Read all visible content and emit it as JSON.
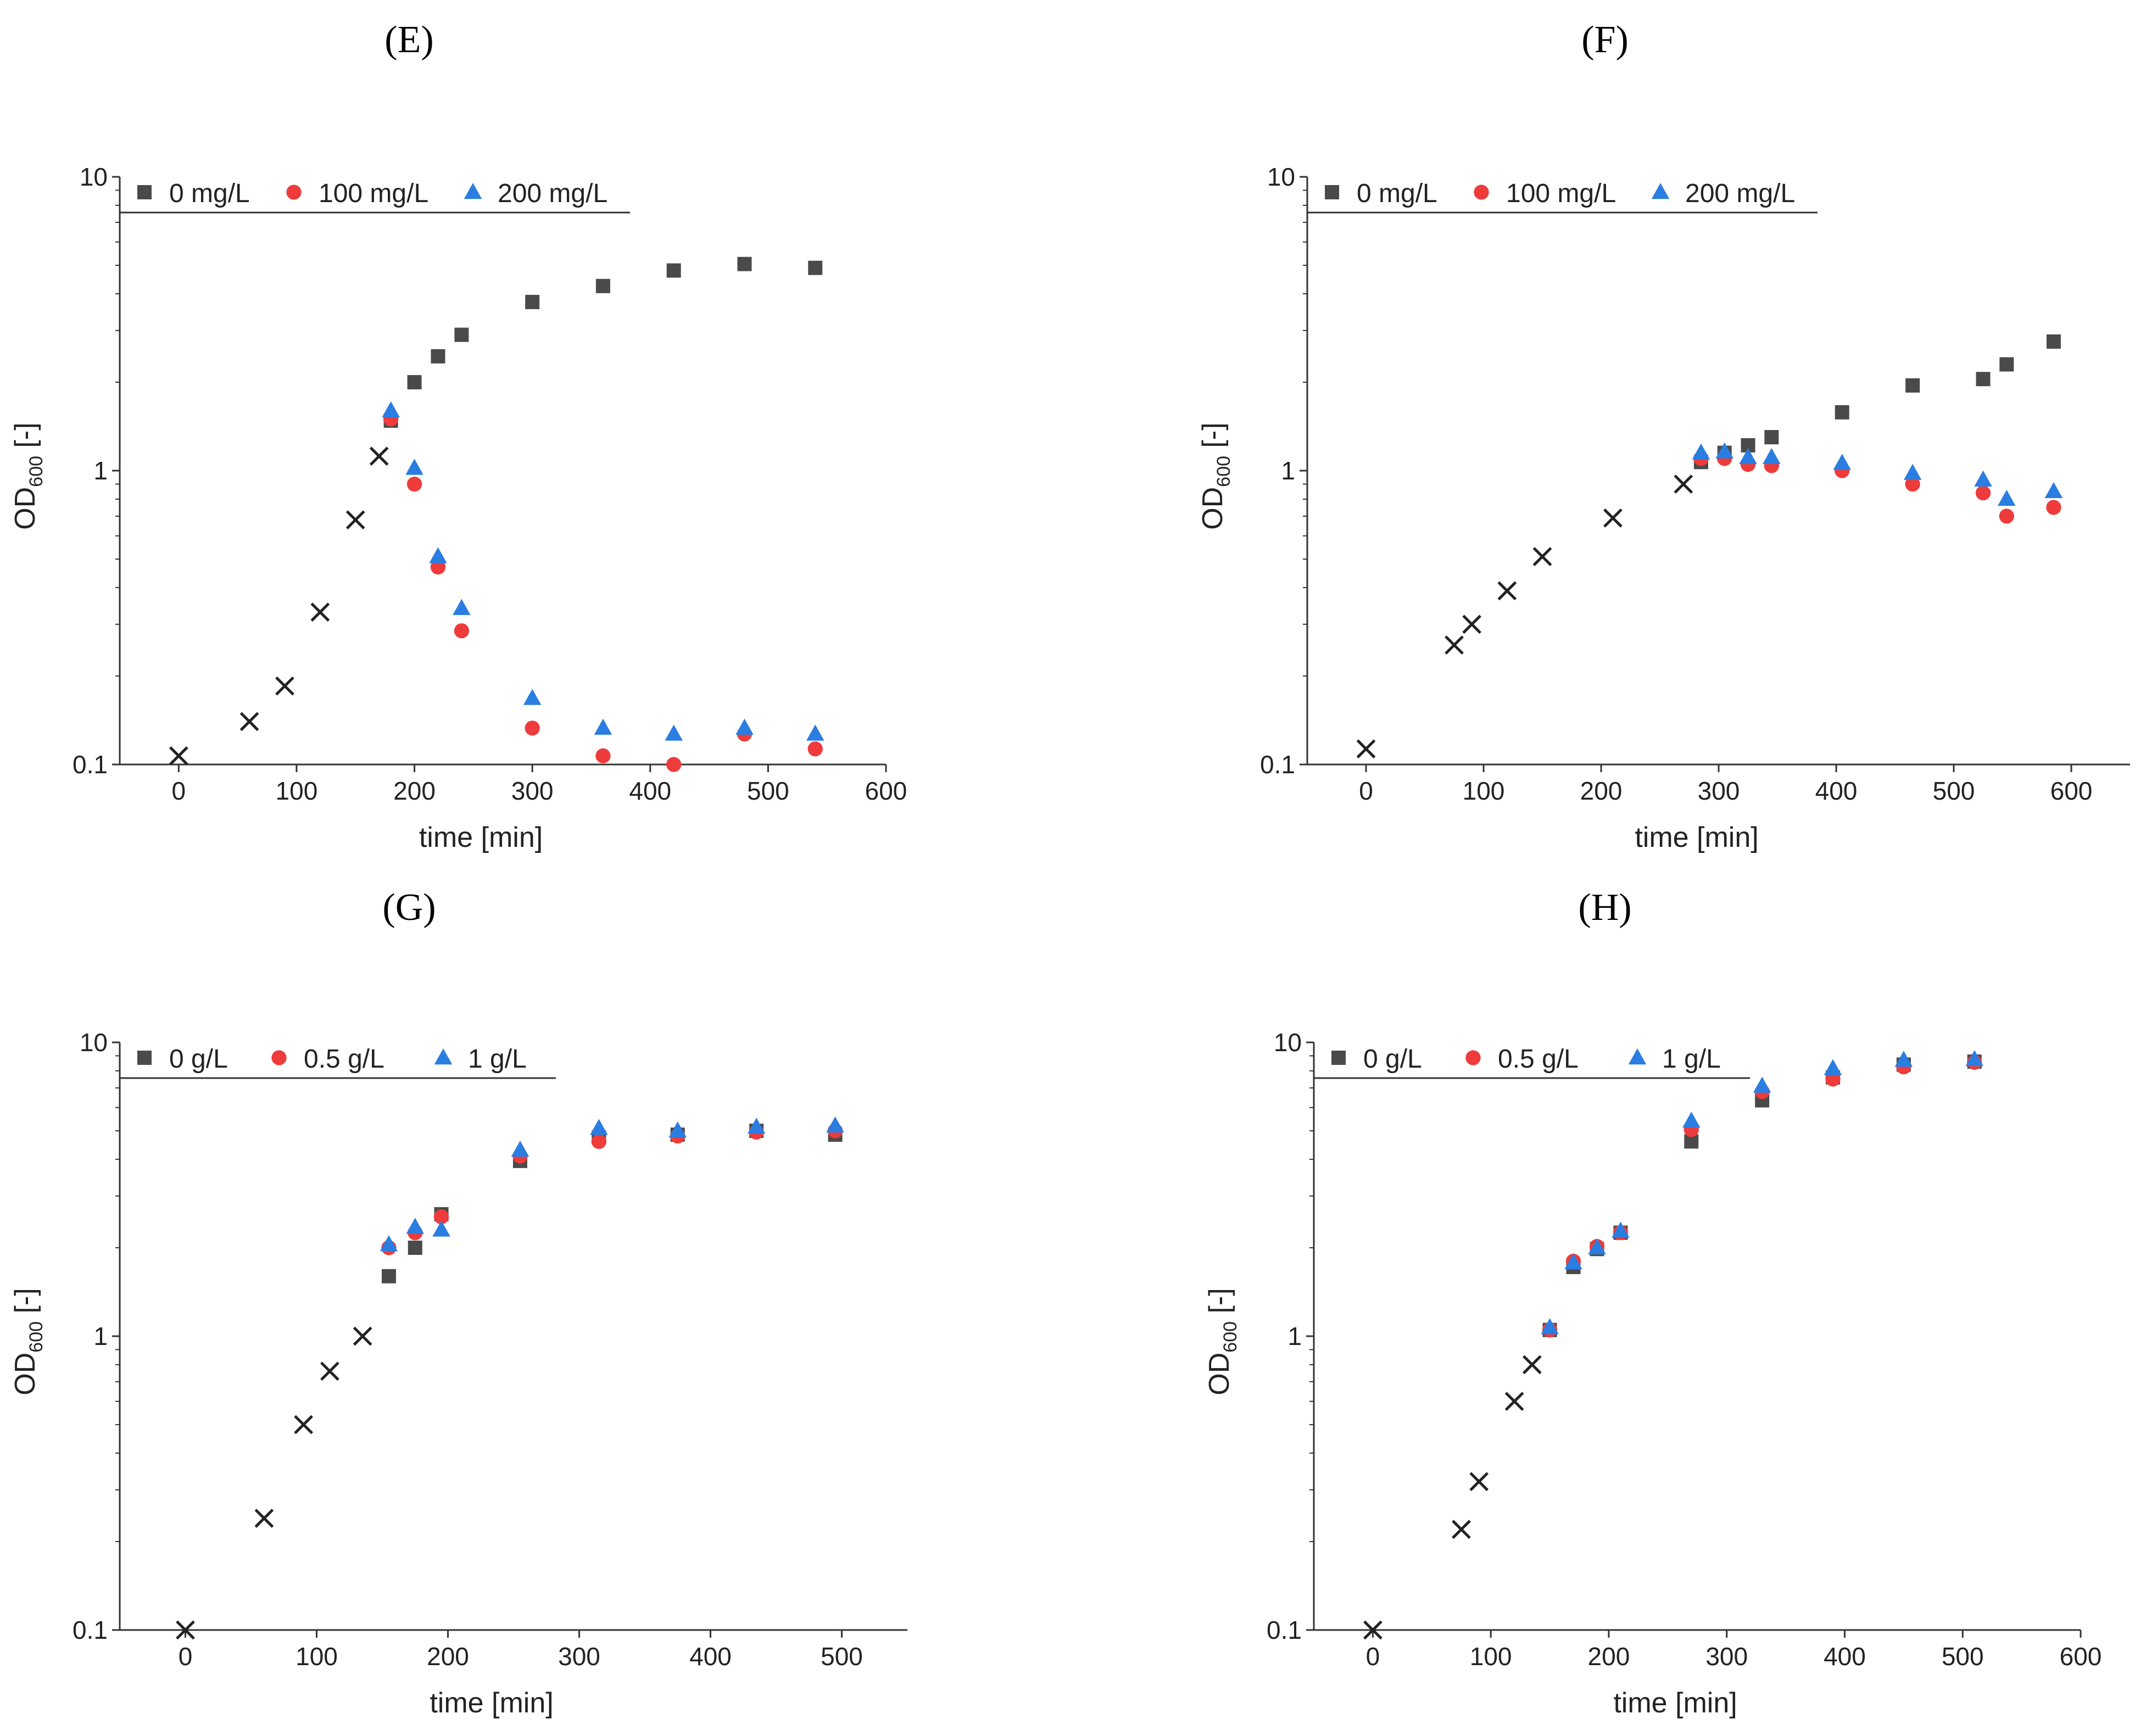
{
  "chart_data": [
    {
      "panel": "E",
      "panel_label": "(E)",
      "type": "scatter",
      "xlabel": "time [min]",
      "ylabel_main": "OD",
      "ylabel_sub": "600",
      "ylabel_tail": " [-]",
      "xlim": [
        -50,
        600
      ],
      "xticks": [
        0,
        100,
        200,
        300,
        400,
        500,
        600
      ],
      "ylim": [
        0.1,
        10
      ],
      "yscale": "log",
      "yticks": [
        {
          "v": 0.1,
          "label": "0.1"
        },
        {
          "v": 1,
          "label": "1"
        },
        {
          "v": 10,
          "label": "10"
        }
      ],
      "grid": false,
      "legend_position": "top-left",
      "legend": [
        {
          "label": "0 mg/L",
          "marker": "square",
          "color": "#4a4a4a"
        },
        {
          "label": "100 mg/L",
          "marker": "circle",
          "color": "#ee3b3b"
        },
        {
          "label": "200 mg/L",
          "marker": "triangle",
          "color": "#2a7de1"
        }
      ],
      "preculture": [
        [
          0,
          0.107
        ],
        [
          60,
          0.14
        ],
        [
          90,
          0.185
        ],
        [
          120,
          0.33
        ],
        [
          150,
          0.68
        ],
        [
          170,
          1.12
        ]
      ],
      "series": [
        {
          "name": "0 mg/L",
          "marker": "square",
          "color": "#4a4a4a",
          "points": [
            [
              180,
              1.48
            ],
            [
              200,
              2.0
            ],
            [
              220,
              2.45
            ],
            [
              240,
              2.9
            ],
            [
              300,
              3.75
            ],
            [
              360,
              4.25
            ],
            [
              420,
              4.8
            ],
            [
              480,
              5.05
            ],
            [
              540,
              4.9
            ]
          ]
        },
        {
          "name": "100 mg/L",
          "marker": "circle",
          "color": "#ee3b3b",
          "points": [
            [
              180,
              1.5
            ],
            [
              200,
              0.9
            ],
            [
              220,
              0.47
            ],
            [
              240,
              0.285
            ],
            [
              300,
              0.133
            ],
            [
              360,
              0.107
            ],
            [
              420,
              0.1
            ],
            [
              480,
              0.127
            ],
            [
              540,
              0.113
            ]
          ]
        },
        {
          "name": "200 mg/L",
          "marker": "triangle",
          "color": "#2a7de1",
          "points": [
            [
              180,
              1.6
            ],
            [
              200,
              1.02
            ],
            [
              220,
              0.51
            ],
            [
              240,
              0.34
            ],
            [
              300,
              0.168
            ],
            [
              360,
              0.133
            ],
            [
              420,
              0.127
            ],
            [
              480,
              0.133
            ],
            [
              540,
              0.127
            ]
          ]
        }
      ]
    },
    {
      "panel": "F",
      "panel_label": "(F)",
      "type": "scatter",
      "xlabel": "time [min]",
      "ylabel_main": "OD",
      "ylabel_sub": "600",
      "ylabel_tail": " [-]",
      "xlim": [
        -50,
        650
      ],
      "xticks": [
        0,
        100,
        200,
        300,
        400,
        500,
        600
      ],
      "ylim": [
        0.1,
        10
      ],
      "yscale": "log",
      "yticks": [
        {
          "v": 0.1,
          "label": "0.1"
        },
        {
          "v": 1,
          "label": "1"
        },
        {
          "v": 10,
          "label": "10"
        }
      ],
      "grid": false,
      "legend_position": "top-left",
      "legend": [
        {
          "label": "0 mg/L",
          "marker": "square",
          "color": "#4a4a4a"
        },
        {
          "label": "100 mg/L",
          "marker": "circle",
          "color": "#ee3b3b"
        },
        {
          "label": "200 mg/L",
          "marker": "triangle",
          "color": "#2a7de1"
        }
      ],
      "preculture": [
        [
          0,
          0.113
        ],
        [
          75,
          0.255
        ],
        [
          90,
          0.3
        ],
        [
          120,
          0.39
        ],
        [
          150,
          0.51
        ],
        [
          210,
          0.69
        ],
        [
          270,
          0.9
        ]
      ],
      "series": [
        {
          "name": "0 mg/L",
          "marker": "square",
          "color": "#4a4a4a",
          "points": [
            [
              285,
              1.07
            ],
            [
              305,
              1.15
            ],
            [
              325,
              1.22
            ],
            [
              345,
              1.3
            ],
            [
              405,
              1.58
            ],
            [
              465,
              1.95
            ],
            [
              525,
              2.05
            ],
            [
              545,
              2.3
            ],
            [
              585,
              2.75
            ]
          ]
        },
        {
          "name": "100 mg/L",
          "marker": "circle",
          "color": "#ee3b3b",
          "points": [
            [
              285,
              1.1
            ],
            [
              305,
              1.1
            ],
            [
              325,
              1.05
            ],
            [
              345,
              1.04
            ],
            [
              405,
              1.0
            ],
            [
              465,
              0.9
            ],
            [
              525,
              0.84
            ],
            [
              545,
              0.7
            ],
            [
              585,
              0.75
            ]
          ]
        },
        {
          "name": "200 mg/L",
          "marker": "triangle",
          "color": "#2a7de1",
          "points": [
            [
              285,
              1.15
            ],
            [
              305,
              1.16
            ],
            [
              325,
              1.11
            ],
            [
              345,
              1.11
            ],
            [
              405,
              1.06
            ],
            [
              465,
              0.98
            ],
            [
              525,
              0.93
            ],
            [
              545,
              0.8
            ],
            [
              585,
              0.85
            ]
          ]
        }
      ]
    },
    {
      "panel": "G",
      "panel_label": "(G)",
      "type": "scatter",
      "xlabel": "time [min]",
      "ylabel_main": "OD",
      "ylabel_sub": "600",
      "ylabel_tail": " [-]",
      "xlim": [
        -50,
        550
      ],
      "xticks": [
        0,
        100,
        200,
        300,
        400,
        500
      ],
      "ylim": [
        0.1,
        10
      ],
      "yscale": "log",
      "yticks": [
        {
          "v": 0.1,
          "label": "0.1"
        },
        {
          "v": 1,
          "label": "1"
        },
        {
          "v": 10,
          "label": "10"
        }
      ],
      "grid": false,
      "legend_position": "top-left",
      "legend": [
        {
          "label": "0 g/L",
          "marker": "square",
          "color": "#4a4a4a"
        },
        {
          "label": "0.5 g/L",
          "marker": "circle",
          "color": "#ee3b3b"
        },
        {
          "label": "1 g/L",
          "marker": "triangle",
          "color": "#2a7de1"
        }
      ],
      "preculture": [
        [
          0,
          0.1
        ],
        [
          60,
          0.24
        ],
        [
          90,
          0.5
        ],
        [
          110,
          0.76
        ],
        [
          135,
          1.0
        ]
      ],
      "series": [
        {
          "name": "0 g/L",
          "marker": "square",
          "color": "#4a4a4a",
          "points": [
            [
              155,
              1.6
            ],
            [
              175,
              2.0
            ],
            [
              195,
              2.6
            ],
            [
              255,
              3.95
            ],
            [
              315,
              4.75
            ],
            [
              375,
              4.85
            ],
            [
              435,
              5.0
            ],
            [
              495,
              4.85
            ]
          ]
        },
        {
          "name": "0.5 g/L",
          "marker": "circle",
          "color": "#ee3b3b",
          "points": [
            [
              155,
              2.0
            ],
            [
              175,
              2.25
            ],
            [
              195,
              2.55
            ],
            [
              255,
              4.1
            ],
            [
              315,
              4.6
            ],
            [
              375,
              4.8
            ],
            [
              435,
              4.95
            ],
            [
              495,
              5.0
            ]
          ]
        },
        {
          "name": "1 g/L",
          "marker": "triangle",
          "color": "#2a7de1",
          "points": [
            [
              155,
              2.05
            ],
            [
              175,
              2.35
            ],
            [
              195,
              2.3
            ],
            [
              255,
              4.3
            ],
            [
              315,
              5.1
            ],
            [
              375,
              5.0
            ],
            [
              435,
              5.15
            ],
            [
              495,
              5.2
            ]
          ]
        }
      ]
    },
    {
      "panel": "H",
      "panel_label": "(H)",
      "type": "scatter",
      "xlabel": "time [min]",
      "ylabel_main": "OD",
      "ylabel_sub": "600",
      "ylabel_tail": " [-]",
      "xlim": [
        -50,
        600
      ],
      "xticks": [
        0,
        100,
        200,
        300,
        400,
        500,
        600
      ],
      "ylim": [
        0.1,
        10
      ],
      "yscale": "log",
      "yticks": [
        {
          "v": 0.1,
          "label": "0.1"
        },
        {
          "v": 1,
          "label": "1"
        },
        {
          "v": 10,
          "label": "10"
        }
      ],
      "grid": false,
      "legend_position": "top-left",
      "legend": [
        {
          "label": "0 g/L",
          "marker": "square",
          "color": "#4a4a4a"
        },
        {
          "label": "0.5 g/L",
          "marker": "circle",
          "color": "#ee3b3b"
        },
        {
          "label": "1 g/L",
          "marker": "triangle",
          "color": "#2a7de1"
        }
      ],
      "preculture": [
        [
          0,
          0.1
        ],
        [
          75,
          0.22
        ],
        [
          90,
          0.32
        ],
        [
          120,
          0.6
        ],
        [
          135,
          0.8
        ]
      ],
      "series": [
        {
          "name": "0 g/L",
          "marker": "square",
          "color": "#4a4a4a",
          "points": [
            [
              150,
              1.05
            ],
            [
              170,
              1.72
            ],
            [
              190,
              1.98
            ],
            [
              210,
              2.25
            ],
            [
              270,
              4.6
            ],
            [
              330,
              6.35
            ],
            [
              390,
              7.6
            ],
            [
              450,
              8.4
            ],
            [
              510,
              8.6
            ]
          ]
        },
        {
          "name": "0.5 g/L",
          "marker": "circle",
          "color": "#ee3b3b",
          "points": [
            [
              150,
              1.05
            ],
            [
              170,
              1.8
            ],
            [
              190,
              2.02
            ],
            [
              210,
              2.25
            ],
            [
              270,
              5.05
            ],
            [
              330,
              6.8
            ],
            [
              390,
              7.5
            ],
            [
              450,
              8.25
            ],
            [
              510,
              8.55
            ]
          ]
        },
        {
          "name": "1 g/L",
          "marker": "triangle",
          "color": "#2a7de1",
          "points": [
            [
              150,
              1.07
            ],
            [
              170,
              1.78
            ],
            [
              190,
              2.0
            ],
            [
              210,
              2.28
            ],
            [
              270,
              5.4
            ],
            [
              330,
              7.1
            ],
            [
              390,
              8.15
            ],
            [
              450,
              8.7
            ],
            [
              510,
              8.75
            ]
          ]
        }
      ]
    }
  ]
}
